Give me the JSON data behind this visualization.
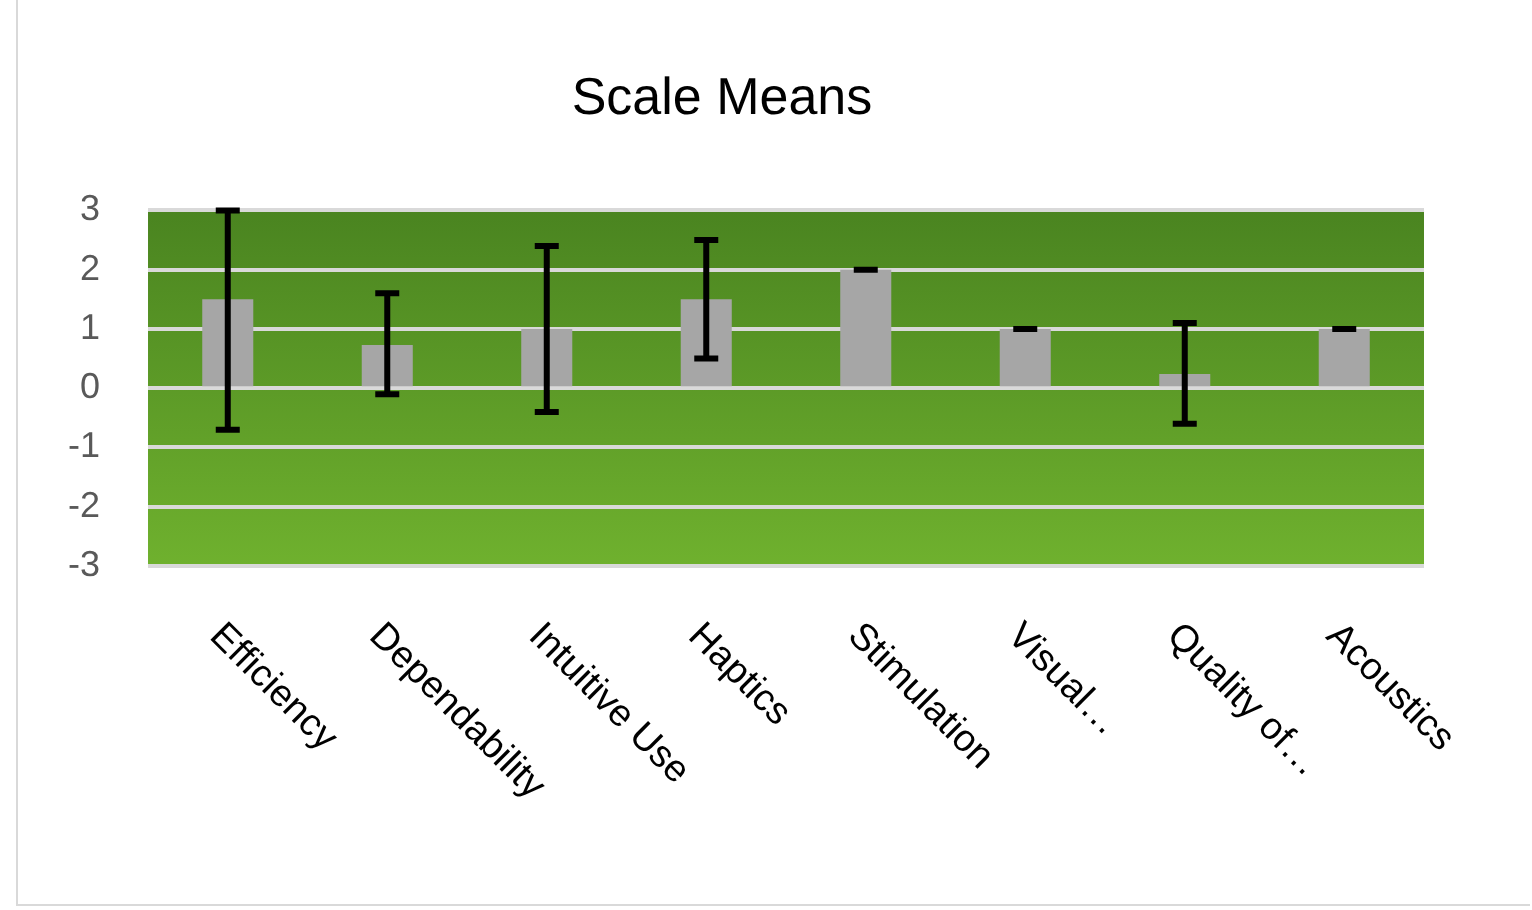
{
  "chart_data": {
    "type": "bar",
    "title": "Scale Means",
    "categories": [
      "Efficiency",
      "Dependability",
      "Intuitive Use",
      "Haptics",
      "Stimulation",
      "Visual…",
      "Quality of…",
      "Acoustics"
    ],
    "values": [
      1.5,
      0.73,
      1.0,
      1.5,
      2.0,
      1.0,
      0.24,
      1.0
    ],
    "errors": [
      [
        -0.7,
        3.0
      ],
      [
        -0.1,
        1.6
      ],
      [
        -0.4,
        2.4
      ],
      [
        0.5,
        2.5
      ],
      [
        2.0,
        2.0
      ],
      [
        1.0,
        1.0
      ],
      [
        -0.6,
        1.1
      ],
      [
        1.0,
        1.0
      ]
    ],
    "color": "#a6a6a6",
    "ylim": [
      -3,
      3
    ],
    "yticks": [
      -3,
      -2,
      -1,
      0,
      1,
      2,
      3
    ],
    "grid": "y",
    "legend": false
  }
}
